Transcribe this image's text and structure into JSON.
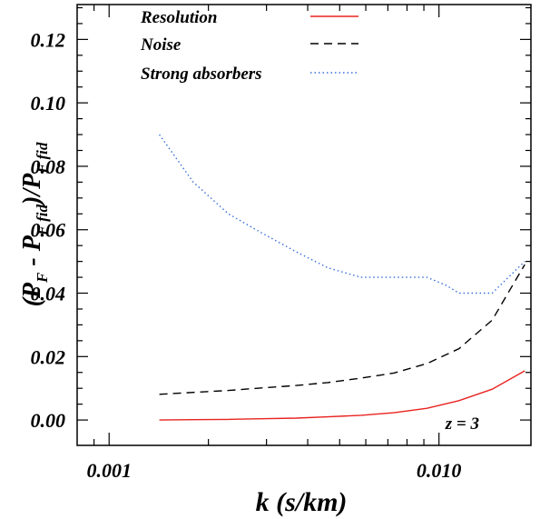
{
  "chart_data": {
    "type": "line",
    "xlabel": "k (s/km)",
    "ylabel_parts": {
      "open": "(P",
      "sub1": "F",
      "minus": " - P",
      "sub2": "F fid",
      "close": ")/P",
      "sub3": "F fid"
    },
    "xscale": "log",
    "xlim": [
      0.0008,
      0.019
    ],
    "ylim": [
      -0.008,
      0.131
    ],
    "x_ticks": [
      0.001,
      0.01
    ],
    "x_tick_labels": [
      "0.001",
      "0.010"
    ],
    "y_ticks": [
      0.0,
      0.02,
      0.04,
      0.06,
      0.08,
      0.1,
      0.12
    ],
    "y_tick_labels": [
      "0.00",
      "0.02",
      "0.04",
      "0.06",
      "0.08",
      "0.10",
      "0.12"
    ],
    "legend_position": "top-right",
    "annotation": "z = 3",
    "series": [
      {
        "name": "Resolution",
        "color": "#e8231f",
        "dash": "solid",
        "x": [
          0.00142,
          0.0018,
          0.0023,
          0.0029,
          0.0037,
          0.0046,
          0.0058,
          0.0073,
          0.0092,
          0.0115,
          0.0145,
          0.0182
        ],
        "y": [
          0.0,
          0.0001,
          0.0002,
          0.0004,
          0.0006,
          0.001,
          0.0015,
          0.0023,
          0.0037,
          0.0061,
          0.0097,
          0.0155
        ]
      },
      {
        "name": "Noise",
        "color": "#000000",
        "dash": "dashed",
        "x": [
          0.00142,
          0.0018,
          0.0023,
          0.0029,
          0.0037,
          0.0046,
          0.0058,
          0.0073,
          0.0092,
          0.0115,
          0.0145,
          0.0182
        ],
        "y": [
          0.0081,
          0.0087,
          0.0093,
          0.0101,
          0.0109,
          0.0118,
          0.0132,
          0.0148,
          0.0178,
          0.0225,
          0.0315,
          0.049
        ]
      },
      {
        "name": "Strong absorbers",
        "color": "#3a6fd8",
        "dash": "dotted",
        "x": [
          0.00142,
          0.0018,
          0.0023,
          0.0029,
          0.0037,
          0.0046,
          0.0058,
          0.0073,
          0.0092,
          0.0105,
          0.0115,
          0.0145,
          0.0182
        ],
        "y": [
          0.09,
          0.075,
          0.065,
          0.059,
          0.053,
          0.048,
          0.045,
          0.045,
          0.045,
          0.0425,
          0.04,
          0.04,
          0.05
        ]
      }
    ]
  }
}
